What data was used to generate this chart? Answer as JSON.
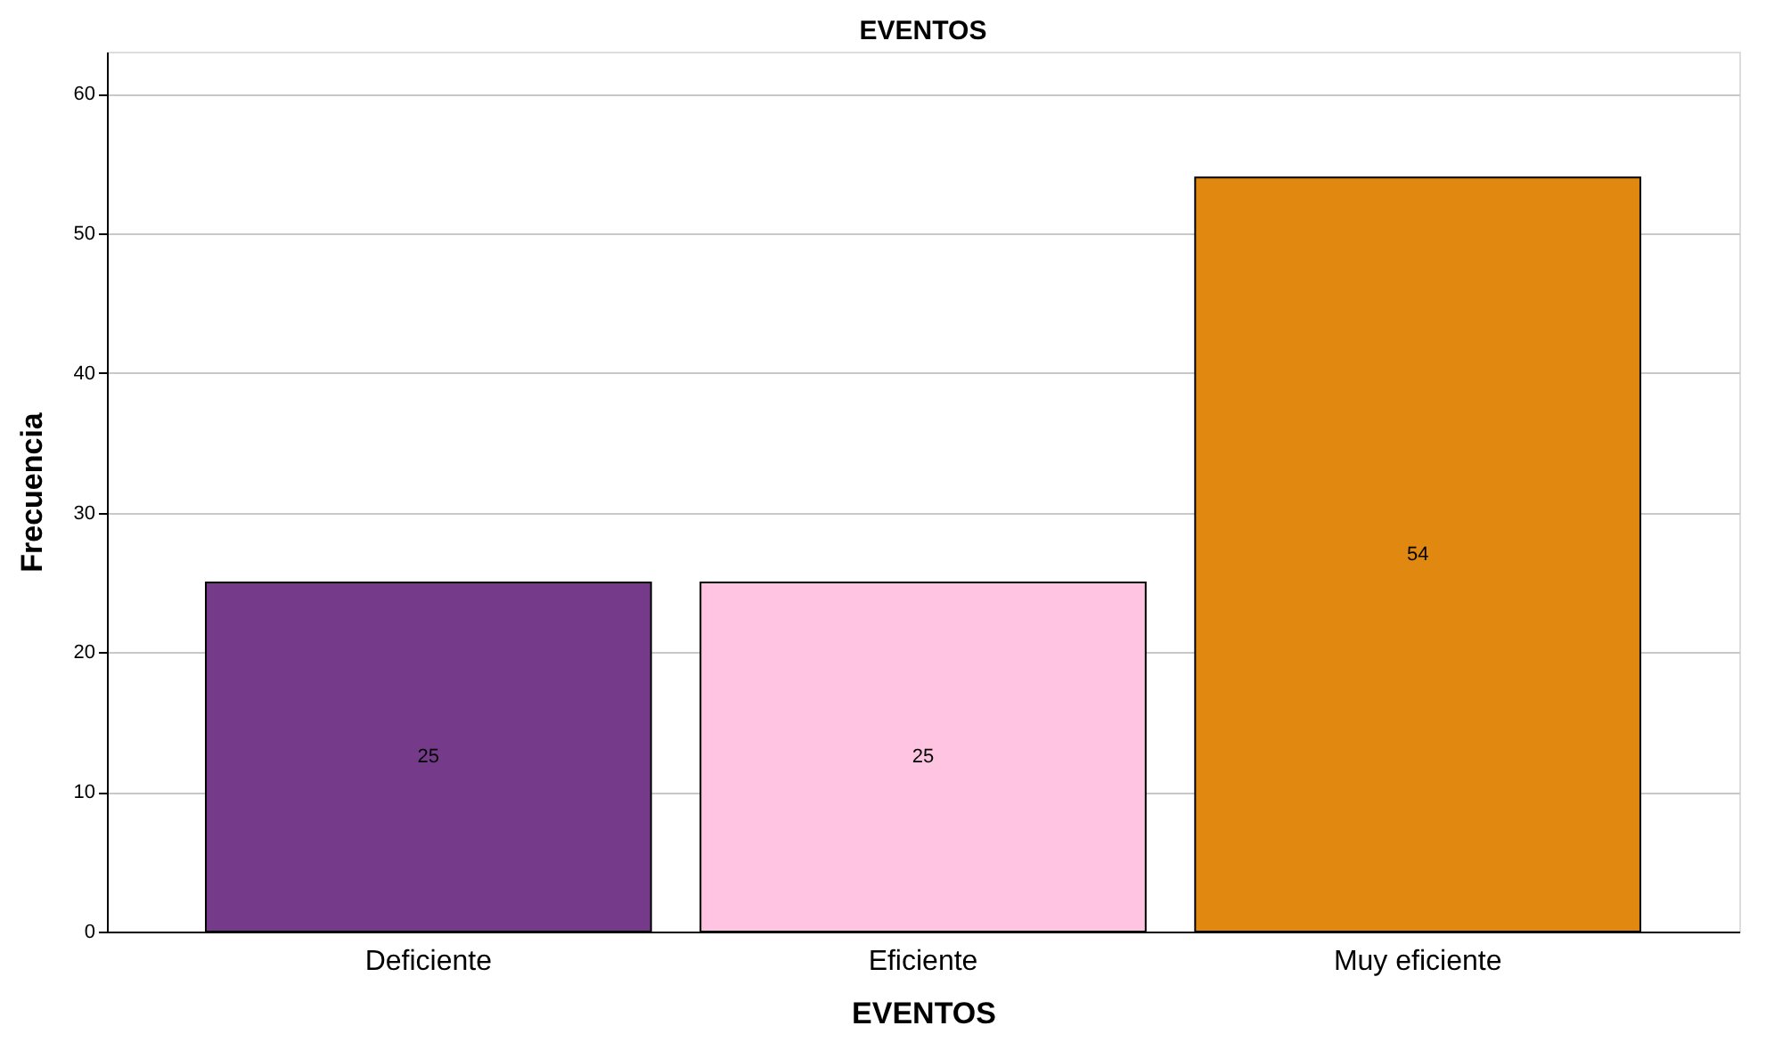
{
  "chart_data": {
    "type": "bar",
    "title": "EVENTOS",
    "xlabel": "EVENTOS",
    "ylabel": "Frecuencia",
    "categories": [
      "Deficiente",
      "Eficiente",
      "Muy eficiente"
    ],
    "values": [
      25,
      25,
      54
    ],
    "colors": [
      "#763a8a",
      "#fec4e2",
      "#e0880f"
    ],
    "ylim": [
      0,
      63
    ],
    "yticks": [
      0,
      10,
      20,
      30,
      40,
      50,
      60
    ],
    "grid": "y",
    "data_labels": true
  }
}
